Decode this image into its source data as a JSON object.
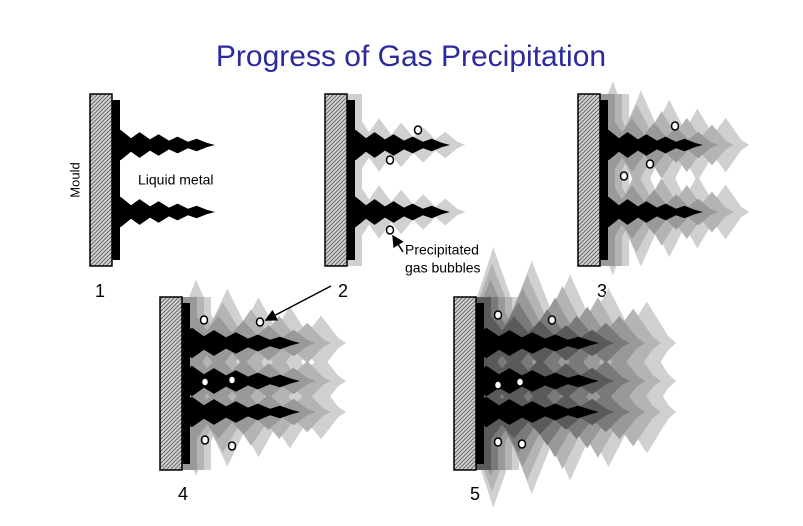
{
  "title": "Progress of Gas Precipitation",
  "labels": {
    "mould": "Mould",
    "liquid_metal": "Liquid metal",
    "bubbles_line1": "Precipitated",
    "bubbles_line2": "gas bubbles"
  },
  "panels": [
    {
      "label": "1"
    },
    {
      "label": "2"
    },
    {
      "label": "3"
    },
    {
      "label": "4"
    },
    {
      "label": "5"
    }
  ]
}
